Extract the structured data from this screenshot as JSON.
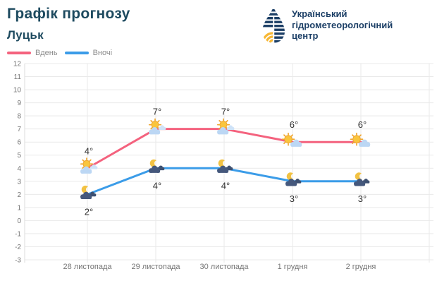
{
  "header": {
    "logo_lines": [
      "Український",
      "гідрометеорологічний",
      "центр"
    ]
  },
  "colors": {
    "title": "#1d4a5f",
    "logo_navy": "#1c3f66",
    "logo_yellow": "#f7b733",
    "grid": "#e9e9e9",
    "axis_line": "#dcdcdc",
    "axis_text": "#757575",
    "legend_text": "#8c8c8c",
    "point_label": "#333333",
    "day_line": "#f4627e",
    "night_line": "#3b9ce8",
    "sun": "#f9c53e",
    "sun_rays": "#f0a62f",
    "day_cloud": "#bcd7f4",
    "day_cloud_light": "#cfe3f8",
    "night_cloud": "#45587c",
    "night_cloud_dark": "#3d5071",
    "moon": "#f2c243"
  },
  "chart_data": {
    "type": "line",
    "title": "Графік прогнозу",
    "subtitle": "Луцьк",
    "categories": [
      "28 листопада",
      "29 листопада",
      "30 листопада",
      "1 грудня",
      "2 грудня"
    ],
    "series": [
      {
        "name": "Вдень",
        "period": "day",
        "values": [
          4,
          7,
          7,
          6,
          6
        ],
        "labels": [
          "4°",
          "7°",
          "7°",
          "6°",
          "6°"
        ],
        "color": "#f4627e",
        "label_position": "above",
        "icons": [
          "sun-behind-cloud-icon",
          "sun-behind-cloud-icon",
          "sun-behind-cloud-icon",
          "sun-and-cloud-icon",
          "sun-and-cloud-icon"
        ]
      },
      {
        "name": "Вночі",
        "period": "night",
        "values": [
          2,
          4,
          4,
          3,
          3
        ],
        "labels": [
          "2°",
          "4°",
          "4°",
          "3°",
          "3°"
        ],
        "color": "#3b9ce8",
        "label_position": "below",
        "icons": [
          "moon-cloud-icon",
          "moon-cloud-icon",
          "moon-cloud-icon",
          "moon-cloud-icon",
          "moon-cloud-icon"
        ]
      }
    ],
    "ylim": [
      -3,
      12
    ],
    "ytick_step": 1,
    "grid": true,
    "legend_position": "top-left"
  }
}
